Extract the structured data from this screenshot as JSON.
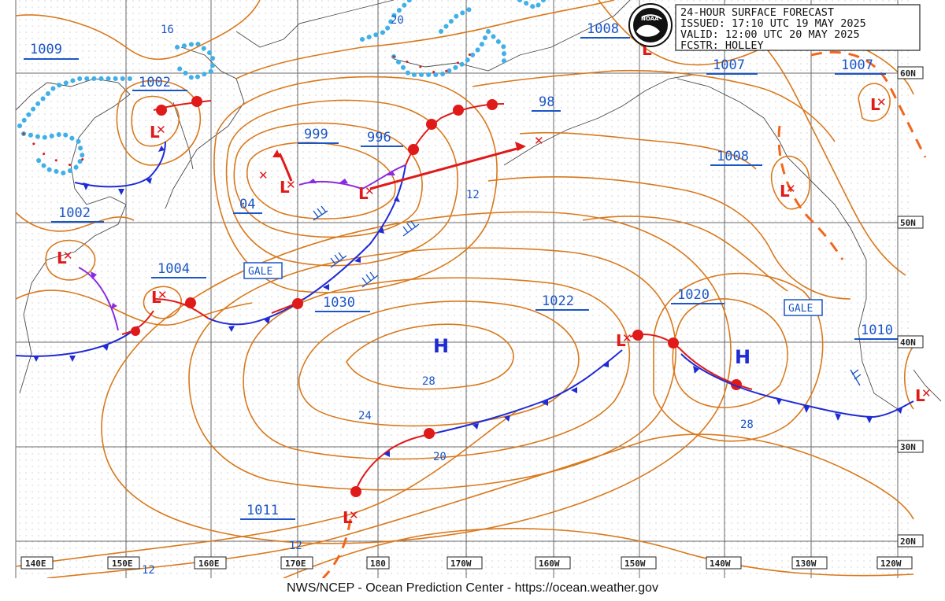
{
  "header": {
    "title": "24-HOUR SURFACE FORECAST",
    "issued": "ISSUED: 17:10 UTC 19 MAY 2025",
    "valid": "VALID:  12:00 UTC 20 MAY 2025",
    "forecaster": "FCSTR:  HOLLEY",
    "logo_text": "NOAA"
  },
  "footer": "NWS/NCEP - Ocean Prediction Center - https://ocean.weather.gov",
  "latitudes": [
    "60N",
    "50N",
    "40N",
    "30N",
    "20N"
  ],
  "longitudes": [
    "140E",
    "150E",
    "160E",
    "170E",
    "180",
    "170W",
    "160W",
    "150W",
    "140W",
    "130W",
    "120W"
  ],
  "pressure_labels": [
    "1009",
    "1002",
    "999",
    "996",
    "98",
    "1008",
    "1007",
    "1007",
    "1008",
    "1002",
    "04",
    "1004",
    "1030",
    "1022",
    "1020",
    "1010",
    "1011"
  ],
  "isobar_labels": [
    "16",
    "20",
    "12",
    "28",
    "24",
    "20",
    "28",
    "12",
    "12"
  ],
  "systems": {
    "low": "L",
    "high": "H",
    "gale": "GALE",
    "dissipating_mark": "✕"
  },
  "colors": {
    "isobar": "#d9791c",
    "cold_front": "#1f2bd4",
    "warm_front": "#e01919",
    "occluded_front": "#8a2be2",
    "label_blue": "#1a56c7",
    "ice_edge": "#3fb0e8"
  },
  "map_layers": [
    "isobars",
    "coastlines",
    "ice-edge",
    "fronts",
    "lat-lon-grid"
  ]
}
